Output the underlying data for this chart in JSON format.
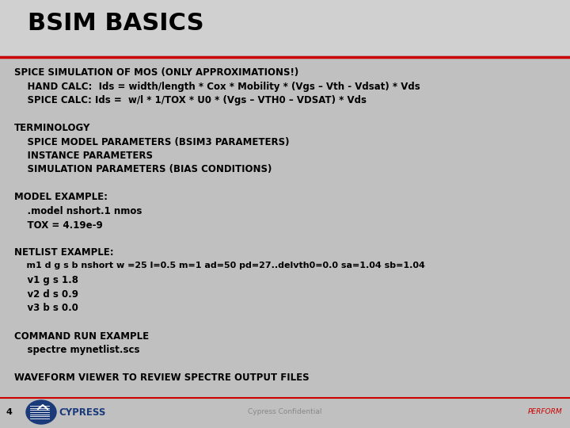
{
  "bg_color": "#c0c0c0",
  "title_bg_color": "#d0d0d0",
  "title": "BSIM BASICS",
  "title_color": "#000000",
  "title_fontsize": 22,
  "red_line_color": "#cc0000",
  "content_lines": [
    {
      "text": "SPICE SIMULATION OF MOS (ONLY APPROXIMATIONS!)",
      "indent": 0,
      "bold": true,
      "size": 8.5
    },
    {
      "text": "    HAND CALC:  Ids = width/length * Cox * Mobility * (Vgs – Vth - Vdsat) * Vds",
      "indent": 1,
      "bold": true,
      "size": 8.5
    },
    {
      "text": "    SPICE CALC: Ids =  w/l * 1/TOX * U0 * (Vgs – VTH0 – VDSAT) * Vds",
      "indent": 1,
      "bold": true,
      "size": 8.5
    },
    {
      "text": "",
      "indent": 0,
      "bold": false,
      "size": 8.5
    },
    {
      "text": "TERMINOLOGY",
      "indent": 0,
      "bold": true,
      "size": 8.5
    },
    {
      "text": "    SPICE MODEL PARAMETERS (BSIM3 PARAMETERS)",
      "indent": 1,
      "bold": true,
      "size": 8.5
    },
    {
      "text": "    INSTANCE PARAMETERS",
      "indent": 1,
      "bold": true,
      "size": 8.5
    },
    {
      "text": "    SIMULATION PARAMETERS (BIAS CONDITIONS)",
      "indent": 1,
      "bold": true,
      "size": 8.5
    },
    {
      "text": "",
      "indent": 0,
      "bold": false,
      "size": 8.5
    },
    {
      "text": "MODEL EXAMPLE:",
      "indent": 0,
      "bold": true,
      "size": 8.5
    },
    {
      "text": "    .model nshort.1 nmos",
      "indent": 1,
      "bold": true,
      "size": 8.5
    },
    {
      "text": "    TOX = 4.19e-9",
      "indent": 1,
      "bold": true,
      "size": 8.5
    },
    {
      "text": "",
      "indent": 0,
      "bold": false,
      "size": 8.5
    },
    {
      "text": "NETLIST EXAMPLE:",
      "indent": 0,
      "bold": true,
      "size": 8.5
    },
    {
      "text": "    m1 d g s b nshort w =25 l=0.5 m=1 ad=50 pd=27..delvth0=0.0 sa=1.04 sb=1.04",
      "indent": 1,
      "bold": true,
      "size": 8.0
    },
    {
      "text": "    v1 g s 1.8",
      "indent": 1,
      "bold": true,
      "size": 8.5
    },
    {
      "text": "    v2 d s 0.9",
      "indent": 1,
      "bold": true,
      "size": 8.5
    },
    {
      "text": "    v3 b s 0.0",
      "indent": 1,
      "bold": true,
      "size": 8.5
    },
    {
      "text": "",
      "indent": 0,
      "bold": false,
      "size": 8.5
    },
    {
      "text": "COMMAND RUN EXAMPLE",
      "indent": 0,
      "bold": true,
      "size": 8.5
    },
    {
      "text": "    spectre mynetlist.scs",
      "indent": 1,
      "bold": true,
      "size": 8.5
    },
    {
      "text": "",
      "indent": 0,
      "bold": false,
      "size": 8.5
    },
    {
      "text": "WAVEFORM VIEWER TO REVIEW SPECTRE OUTPUT FILES",
      "indent": 0,
      "bold": true,
      "size": 8.5
    }
  ],
  "footer_text": "Cypress Confidential",
  "footer_color": "#888888",
  "perform_text": "PERFORM",
  "perform_color": "#cc0000",
  "page_num": "4",
  "page_num_color": "#000000",
  "logo_color": "#1a3a7a",
  "cypress_text_color": "#1a3a7a"
}
